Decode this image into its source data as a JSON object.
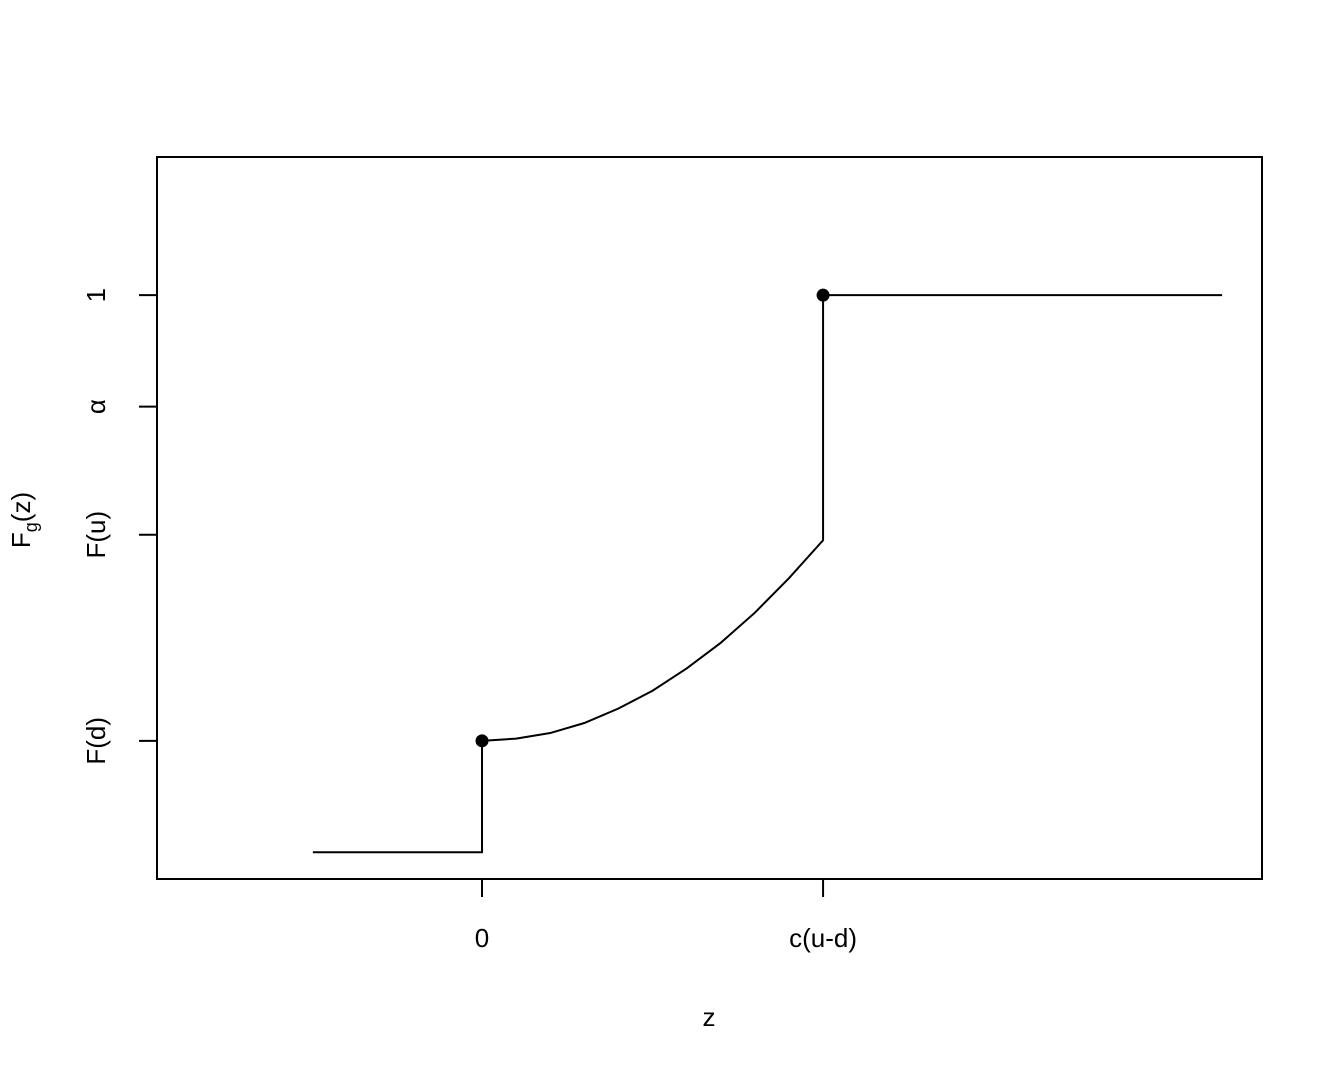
{
  "chart_data": {
    "type": "line",
    "x_label": "z",
    "y_label": {
      "base": "F",
      "subscript": "g",
      "arg": "(z)"
    },
    "xlim": [
      -0.953,
      2.287
    ],
    "ylim": [
      -0.048,
      1.248
    ],
    "xticks": [
      {
        "value": 0,
        "label": "0"
      },
      {
        "value": 1,
        "label": "c(u-d)"
      }
    ],
    "yticks": [
      {
        "value": 0.2,
        "label": "F(d)"
      },
      {
        "value": 0.57,
        "label": "F(u)"
      },
      {
        "value": 0.8,
        "label": "α"
      },
      {
        "value": 1,
        "label": "1"
      }
    ],
    "series": [
      {
        "color": "#000000",
        "x": [
          -0.496,
          0,
          0,
          0.1,
          0.2,
          0.3,
          0.4,
          0.5,
          0.6,
          0.7,
          0.8,
          0.9,
          1,
          1,
          2.17
        ],
        "values": [
          0,
          0,
          0.2,
          0.204,
          0.214,
          0.232,
          0.258,
          0.29,
          0.33,
          0.376,
          0.43,
          0.492,
          0.56,
          1,
          1
        ]
      }
    ],
    "points": {
      "color": "#000000",
      "x": [
        0,
        1
      ],
      "values": [
        0.2,
        1
      ]
    }
  }
}
